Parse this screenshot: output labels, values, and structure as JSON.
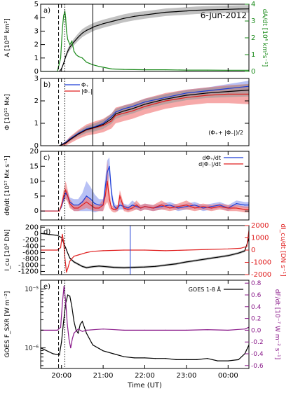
{
  "figure": {
    "date_label": "6-Jun-2012"
  },
  "chart_data": [
    {
      "type": "line",
      "panel": "a)",
      "ylabel": "A [10¹⁸ km²]",
      "y2label": "dA/dt [10⁴ km²s⁻¹]",
      "ylim": [
        0,
        5
      ],
      "yticks": [
        0,
        1,
        2,
        3,
        4,
        5
      ],
      "y2lim": [
        0,
        4
      ],
      "y2ticks": [
        0,
        1,
        2,
        3,
        4
      ],
      "y2color": "#1a8a1a",
      "series": [
        {
          "axis": "left",
          "color": "#000000",
          "band": "#9a9a9a",
          "x": [
            19.95,
            20.0,
            20.05,
            20.1,
            20.15,
            20.2,
            20.3,
            20.4,
            20.5,
            20.6,
            20.7,
            20.8,
            20.9,
            21.0,
            21.25,
            21.5,
            21.75,
            22.0,
            22.25,
            22.5,
            22.75,
            23.0,
            23.25,
            23.5,
            23.75,
            24.0,
            24.25,
            24.5
          ],
          "y": [
            0,
            0.2,
            0.6,
            1.1,
            1.5,
            1.8,
            2.2,
            2.55,
            2.85,
            3.05,
            3.2,
            3.35,
            3.45,
            3.55,
            3.75,
            3.95,
            4.1,
            4.2,
            4.3,
            4.4,
            4.45,
            4.5,
            4.55,
            4.58,
            4.6,
            4.62,
            4.64,
            4.65
          ],
          "err": [
            0,
            0.05,
            0.1,
            0.15,
            0.2,
            0.22,
            0.25,
            0.28,
            0.3,
            0.3,
            0.3,
            0.3,
            0.3,
            0.3,
            0.3,
            0.3,
            0.3,
            0.28,
            0.28,
            0.28,
            0.28,
            0.28,
            0.28,
            0.28,
            0.28,
            0.28,
            0.28,
            0.28
          ]
        },
        {
          "axis": "right",
          "color": "#1a8a1a",
          "x": [
            19.5,
            19.9,
            19.98,
            20.02,
            20.05,
            20.08,
            20.1,
            20.12,
            20.15,
            20.2,
            20.25,
            20.3,
            20.35,
            20.4,
            20.5,
            20.6,
            20.75,
            20.9,
            21.0,
            21.2,
            21.5,
            22.0,
            22.5,
            23.0,
            23.5,
            24.0,
            24.5
          ],
          "y": [
            0,
            0,
            0.8,
            2.5,
            3.3,
            3.6,
            3.2,
            2.4,
            1.9,
            1.6,
            1.8,
            1.2,
            1.0,
            0.9,
            0.8,
            0.55,
            0.4,
            0.3,
            0.25,
            0.15,
            0.12,
            0.1,
            0.1,
            0.08,
            0.08,
            0.07,
            0.07
          ]
        }
      ]
    },
    {
      "type": "line",
      "panel": "b)",
      "ylabel": "Φ [10²¹ Mx]",
      "ylim": [
        0,
        3
      ],
      "yticks": [
        0,
        1,
        2,
        3
      ],
      "annotation": "(Φ₊+ |Φ₋|)/2",
      "legend": [
        "Φ₊",
        "|Φ₋|"
      ],
      "series": [
        {
          "name": "Φ₊",
          "color": "#1f3fd6",
          "band": "#8898ee",
          "x": [
            19.95,
            20.1,
            20.2,
            20.4,
            20.6,
            20.8,
            21.0,
            21.2,
            21.3,
            21.5,
            21.7,
            22.0,
            22.5,
            23.0,
            23.5,
            24.0,
            24.5
          ],
          "y": [
            0,
            0.15,
            0.3,
            0.55,
            0.75,
            0.85,
            1.0,
            1.3,
            1.5,
            1.65,
            1.75,
            1.95,
            2.15,
            2.35,
            2.45,
            2.55,
            2.65
          ],
          "err": [
            0,
            0.05,
            0.08,
            0.1,
            0.12,
            0.14,
            0.15,
            0.15,
            0.15,
            0.15,
            0.15,
            0.15,
            0.15,
            0.15,
            0.15,
            0.2,
            0.25
          ]
        },
        {
          "name": "|Φ₋|",
          "color": "#e02020",
          "band": "#f07070",
          "x": [
            19.95,
            20.1,
            20.2,
            20.4,
            20.6,
            20.8,
            21.0,
            21.2,
            21.3,
            21.5,
            21.7,
            22.0,
            22.5,
            23.0,
            23.5,
            24.0,
            24.5
          ],
          "y": [
            0,
            0.1,
            0.25,
            0.5,
            0.7,
            0.8,
            0.9,
            1.1,
            1.35,
            1.45,
            1.55,
            1.75,
            2.0,
            2.15,
            2.25,
            2.3,
            2.3
          ],
          "err": [
            0,
            0.1,
            0.15,
            0.2,
            0.25,
            0.28,
            0.3,
            0.33,
            0.35,
            0.35,
            0.35,
            0.35,
            0.35,
            0.35,
            0.35,
            0.4,
            0.45
          ]
        },
        {
          "name": "mean",
          "color": "#000000",
          "band": "#9a9a9a",
          "x": [
            19.95,
            20.1,
            20.2,
            20.4,
            20.6,
            20.8,
            21.0,
            21.2,
            21.3,
            21.5,
            21.7,
            22.0,
            22.5,
            23.0,
            23.5,
            24.0,
            24.5
          ],
          "y": [
            0,
            0.12,
            0.27,
            0.52,
            0.72,
            0.82,
            0.95,
            1.2,
            1.42,
            1.55,
            1.65,
            1.85,
            2.08,
            2.25,
            2.35,
            2.42,
            2.48
          ],
          "err": [
            0,
            0.05,
            0.08,
            0.12,
            0.15,
            0.18,
            0.2,
            0.22,
            0.22,
            0.22,
            0.22,
            0.22,
            0.22,
            0.22,
            0.22,
            0.25,
            0.28
          ]
        }
      ]
    },
    {
      "type": "line",
      "panel": "c)",
      "ylabel": "dΦ/dt [10¹⁷ Mx s⁻¹]",
      "ylim": [
        -3,
        20
      ],
      "yticks": [
        0,
        5,
        10,
        15,
        20
      ],
      "legend": [
        "dΦ₊/dt",
        "d|Φ₋|/dt"
      ],
      "series": [
        {
          "name": "dΦ₊/dt",
          "color": "#1f3fd6",
          "band": "#8898ee",
          "x": [
            19.5,
            19.95,
            20.0,
            20.05,
            20.1,
            20.15,
            20.2,
            20.3,
            20.4,
            20.5,
            20.6,
            20.7,
            20.8,
            20.9,
            21.0,
            21.05,
            21.1,
            21.15,
            21.2,
            21.25,
            21.3,
            21.35,
            21.4,
            21.5,
            21.6,
            21.7,
            21.8,
            21.9,
            22.0,
            22.2,
            22.4,
            22.6,
            22.8,
            23.0,
            23.2,
            23.4,
            23.6,
            23.8,
            24.0,
            24.2,
            24.4,
            24.5
          ],
          "y": [
            0,
            0,
            1.5,
            4,
            6,
            5,
            3,
            2,
            2,
            3,
            5,
            4,
            2.5,
            2,
            2,
            8,
            13,
            15,
            6,
            2,
            1,
            1,
            2,
            1.5,
            1,
            2,
            1.5,
            1,
            1.5,
            1,
            1.5,
            2,
            1,
            1.5,
            2,
            1,
            1.5,
            2,
            1,
            2.5,
            2,
            2
          ],
          "err": [
            0,
            0,
            0.5,
            1,
            1.5,
            1.5,
            1.5,
            2,
            2,
            3,
            5,
            4,
            3,
            2,
            2,
            3,
            4,
            3,
            2,
            1.5,
            1,
            1,
            1.5,
            1,
            1,
            1.5,
            1,
            1,
            1,
            1,
            1,
            1,
            1,
            1,
            1,
            1,
            1,
            1,
            1,
            1,
            1,
            1
          ]
        },
        {
          "name": "d|Φ₋|/dt",
          "color": "#e02020",
          "band": "#f07070",
          "x": [
            19.5,
            19.95,
            20.0,
            20.05,
            20.1,
            20.15,
            20.2,
            20.3,
            20.4,
            20.5,
            20.6,
            20.7,
            20.8,
            20.9,
            21.0,
            21.05,
            21.1,
            21.15,
            21.2,
            21.25,
            21.3,
            21.35,
            21.4,
            21.5,
            21.6,
            21.7,
            21.8,
            21.9,
            22.0,
            22.2,
            22.4,
            22.6,
            22.8,
            23.0,
            23.2,
            23.4,
            23.6,
            23.8,
            24.0,
            24.2,
            24.4,
            24.5
          ],
          "y": [
            0,
            0,
            2,
            5,
            7,
            5,
            2.5,
            1,
            1,
            2,
            3,
            2,
            1,
            1,
            2,
            5,
            10,
            4,
            1,
            0.5,
            0.5,
            1,
            5,
            1,
            0.5,
            1,
            2,
            1,
            1.5,
            1,
            2,
            1,
            1.5,
            2,
            1,
            1.5,
            1,
            1.5,
            1,
            1,
            0.5,
            0.5
          ],
          "err": [
            0,
            0,
            1,
            2,
            3,
            2,
            1.5,
            1,
            1,
            1.5,
            2,
            1.5,
            1,
            1,
            2,
            3,
            7,
            3,
            1,
            1,
            1,
            1,
            2,
            1,
            1,
            1,
            1.5,
            1,
            1,
            1,
            1.5,
            1,
            1,
            1.5,
            1,
            1,
            1,
            1,
            1,
            1,
            1,
            1
          ]
        }
      ]
    },
    {
      "type": "line",
      "panel": "d)",
      "ylabel": "I_cu [10³ DN]",
      "y2label": "dI_cu/dt [DN s⁻¹]",
      "ylim": [
        -1300,
        250
      ],
      "yticks": [
        -1200,
        -1000,
        -800,
        -600,
        -400,
        -200,
        0,
        200
      ],
      "y2lim": [
        -2000,
        2000
      ],
      "y2ticks": [
        -2000,
        -1000,
        0,
        1000,
        2000
      ],
      "y2color": "#e02020",
      "series": [
        {
          "axis": "left",
          "color": "#000000",
          "band": "#888888",
          "x": [
            19.5,
            19.7,
            19.9,
            20.0,
            20.05,
            20.1,
            20.15,
            20.2,
            20.3,
            20.4,
            20.5,
            20.6,
            20.75,
            20.9,
            21.0,
            21.25,
            21.5,
            21.75,
            22.0,
            22.25,
            22.5,
            22.75,
            23.0,
            23.25,
            23.5,
            23.75,
            24.0,
            24.25,
            24.4,
            24.5
          ],
          "y": [
            0,
            -30,
            -60,
            -130,
            -300,
            -450,
            -620,
            -780,
            -900,
            -970,
            -1040,
            -1080,
            -1050,
            -1030,
            -1040,
            -1070,
            -1080,
            -1070,
            -1060,
            -1040,
            -1000,
            -960,
            -900,
            -850,
            -800,
            -750,
            -700,
            -620,
            -550,
            -150
          ],
          "err": [
            0,
            0,
            10,
            15,
            20,
            25,
            30,
            35,
            35,
            35,
            35,
            35,
            35,
            35,
            35,
            35,
            35,
            35,
            35,
            35,
            35,
            35,
            35,
            35,
            35,
            35,
            35,
            35,
            40,
            50
          ]
        },
        {
          "axis": "right",
          "color": "#e02020",
          "x": [
            19.5,
            19.9,
            19.98,
            20.02,
            20.05,
            20.08,
            20.12,
            20.15,
            20.2,
            20.3,
            20.4,
            20.5,
            20.6,
            20.75,
            21.0,
            21.5,
            22.0,
            22.5,
            23.0,
            23.5,
            24.0,
            24.3,
            24.45,
            24.5
          ],
          "y": [
            0,
            0,
            200,
            1300,
            700,
            -600,
            -1800,
            -1500,
            -900,
            -500,
            -400,
            -300,
            -200,
            -100,
            -50,
            0,
            0,
            -50,
            0,
            50,
            100,
            150,
            300,
            1600
          ]
        }
      ],
      "marker": {
        "x": 21.65,
        "color": "#1f3fd6"
      }
    },
    {
      "type": "line",
      "panel": "e)",
      "ylabel": "GOES F_SXR [W m⁻²]",
      "y2label": "dF/dt [10⁻⁷ W m⁻² s⁻¹]",
      "legend": [
        "GOES 1-8 Å"
      ],
      "ylim_log": [
        -6.35,
        -4.85
      ],
      "yticks": [
        "10⁻⁵",
        "10⁻⁶"
      ],
      "y2lim": [
        -0.65,
        0.85
      ],
      "y2ticks": [
        -0.6,
        -0.4,
        -0.2,
        0.0,
        0.2,
        0.4,
        0.6,
        0.8
      ],
      "y2color": "#8a1a8a",
      "series": [
        {
          "name": "GOES 1-8 Å",
          "axis": "left",
          "color": "#000000",
          "x": [
            19.5,
            19.8,
            19.95,
            20.0,
            20.05,
            20.1,
            20.15,
            20.2,
            20.25,
            20.3,
            20.35,
            20.4,
            20.45,
            20.5,
            20.6,
            20.75,
            21.0,
            21.25,
            21.5,
            21.75,
            22.0,
            22.25,
            22.5,
            22.75,
            23.0,
            23.25,
            23.5,
            23.75,
            24.0,
            24.25,
            24.4,
            24.5
          ],
          "y": [
            -6.0,
            -6.1,
            -6.12,
            -5.9,
            -5.55,
            -5.25,
            -5.1,
            -5.12,
            -5.3,
            -5.55,
            -5.7,
            -5.75,
            -5.6,
            -5.55,
            -5.75,
            -5.95,
            -6.05,
            -6.1,
            -6.15,
            -6.17,
            -6.17,
            -6.18,
            -6.18,
            -6.2,
            -6.2,
            -6.2,
            -6.18,
            -6.22,
            -6.22,
            -6.2,
            -6.1,
            -5.95
          ]
        },
        {
          "axis": "right",
          "color": "#8a1a8a",
          "x": [
            19.5,
            19.9,
            19.98,
            20.02,
            20.06,
            20.1,
            20.14,
            20.18,
            20.22,
            20.26,
            20.3,
            20.4,
            20.5,
            20.6,
            21.0,
            21.5,
            22.0,
            22.5,
            23.0,
            23.5,
            24.0,
            24.4,
            24.5
          ],
          "y": [
            0,
            0,
            0.05,
            0.45,
            0.75,
            0.5,
            0.1,
            -0.15,
            -0.3,
            -0.15,
            -0.05,
            0.02,
            -0.02,
            0,
            0.02,
            0,
            0,
            0,
            0,
            0.01,
            0,
            0.02,
            0.05
          ]
        }
      ]
    }
  ],
  "x_axis": {
    "label": "Time (UT)",
    "range": [
      19.5,
      24.5
    ],
    "ticks": [
      {
        "v": 20,
        "label": "20:00"
      },
      {
        "v": 21,
        "label": "21:00"
      },
      {
        "v": 22,
        "label": "22:00"
      },
      {
        "v": 23,
        "label": "23:00"
      },
      {
        "v": 24,
        "label": "00:00"
      }
    ],
    "reference_lines": [
      {
        "x": 19.93,
        "style": "dashed"
      },
      {
        "x": 20.08,
        "style": "dotted"
      },
      {
        "x": 20.75,
        "style": "solid"
      }
    ]
  }
}
